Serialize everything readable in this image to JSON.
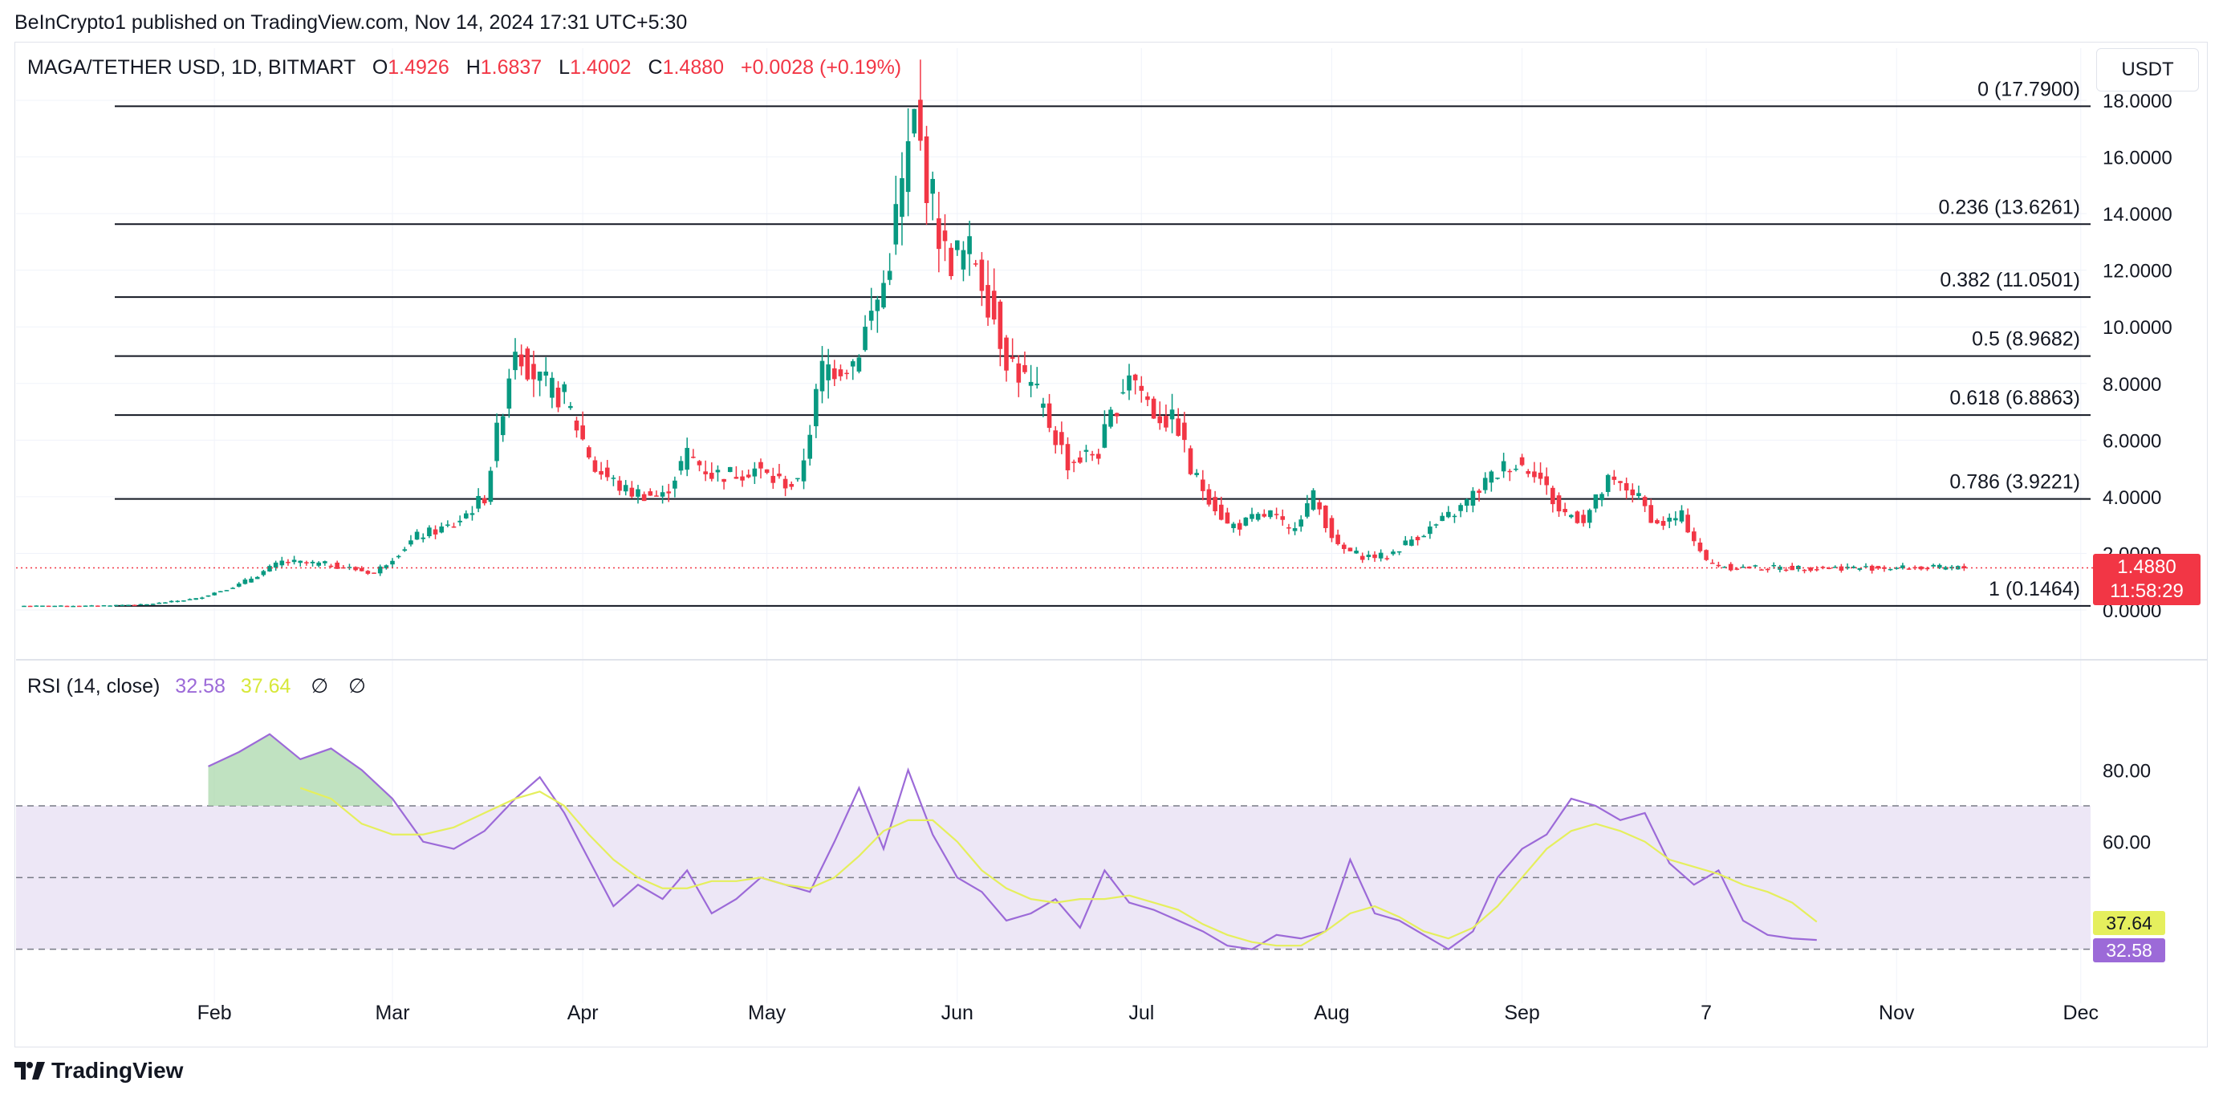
{
  "header": {
    "publisher": "BeInCrypto1 published on TradingView.com, Nov 14, 2024 17:31 UTC+5:30"
  },
  "legend": {
    "symbol": "MAGA/TETHER USD, 1D, BITMART",
    "o_label": "O",
    "o_value": "1.4926",
    "h_label": "H",
    "h_value": "1.6837",
    "l_label": "L",
    "l_value": "1.4002",
    "c_label": "C",
    "c_value": "1.4880",
    "change": "+0.0028 (+0.19%)"
  },
  "currency_unit": "USDT",
  "price_tag": {
    "price": "1.4880",
    "countdown": "11:58:29"
  },
  "rsi_legend": {
    "label": "RSI (14, close)",
    "rsi_value": "32.58",
    "ma_value": "37.64",
    "null1": "∅",
    "null2": "∅"
  },
  "rsi_tags": {
    "ma": "37.64",
    "rsi": "32.58"
  },
  "branding": {
    "name": "TradingView"
  },
  "colors": {
    "up": "#089981",
    "down": "#f23645",
    "rsi_line": "#9c6ad8",
    "rsi_ma": "#e5ef5d",
    "rsi_band": "#ede7f6",
    "fib_line": "#131722"
  },
  "chart_data": [
    {
      "type": "candlestick",
      "title": "MAGA/TETHER USD, 1D, BITMART",
      "ylabel": "USDT",
      "ylim": [
        0,
        18
      ],
      "y_ticks": [
        "0.0000",
        "2.0000",
        "4.0000",
        "6.0000",
        "8.0000",
        "10.0000",
        "12.0000",
        "14.0000",
        "16.0000",
        "18.0000"
      ],
      "x_ticks": [
        "Feb",
        "Mar",
        "Apr",
        "May",
        "Jun",
        "Jul",
        "Aug",
        "Sep",
        "7",
        "Nov",
        "Dec"
      ],
      "fibonacci": [
        {
          "label": "0 (17.7900)",
          "value": 17.79
        },
        {
          "label": "0.236 (13.6261)",
          "value": 13.6261
        },
        {
          "label": "0.382 (11.0501)",
          "value": 11.0501
        },
        {
          "label": "0.5 (8.9682)",
          "value": 8.9682
        },
        {
          "label": "0.618 (6.8863)",
          "value": 6.8863
        },
        {
          "label": "0.786 (3.9221)",
          "value": 3.9221
        },
        {
          "label": "1 (0.1464)",
          "value": 0.1464
        }
      ],
      "last_price": 1.488,
      "close_series": {
        "day_offset": [
          0,
          10,
          20,
          28,
          35,
          42,
          50,
          57,
          64,
          70,
          75,
          80,
          84,
          88,
          93,
          98,
          104,
          108,
          112,
          115,
          119,
          122,
          126,
          130,
          135,
          140,
          145,
          150,
          155,
          160,
          165,
          170,
          175,
          180,
          184,
          188,
          190,
          193,
          196,
          198,
          200,
          203,
          206,
          210,
          214,
          218,
          222,
          226,
          230,
          234,
          238,
          242,
          246,
          250,
          254,
          258,
          262,
          266,
          270,
          274,
          278,
          282,
          286,
          290,
          294,
          298,
          302,
          306,
          310,
          314,
          316
        ],
        "close": [
          0.15,
          0.15,
          0.2,
          0.4,
          0.9,
          1.7,
          1.6,
          1.3,
          2.6,
          3.0,
          4.0,
          9.5,
          8.0,
          7.5,
          5.0,
          4.2,
          4.0,
          5.5,
          4.8,
          4.8,
          5.0,
          4.6,
          4.4,
          8.5,
          8.8,
          11.5,
          17.2,
          12.5,
          12.5,
          9.0,
          7.5,
          5.2,
          5.6,
          8.5,
          7.0,
          6.5,
          4.9,
          4.0,
          3.0,
          3.0,
          3.2,
          3.4,
          2.8,
          4.0,
          2.2,
          1.9,
          1.9,
          2.5,
          3.0,
          3.6,
          4.5,
          5.2,
          5.0,
          3.5,
          3.2,
          4.5,
          4.2,
          3.0,
          3.3,
          1.7,
          1.5,
          1.5,
          1.49,
          1.49,
          1.49,
          1.49,
          1.49,
          1.49,
          1.49,
          1.49,
          1.49
        ]
      }
    },
    {
      "type": "line",
      "title": "RSI (14, close)",
      "ylim": [
        25,
        100
      ],
      "y_ticks": [
        "60.00",
        "80.00"
      ],
      "bands": {
        "upper": 70,
        "middle": 50,
        "lower": 30
      },
      "series": [
        {
          "name": "RSI",
          "day_offset": [
            30,
            35,
            40,
            45,
            50,
            55,
            60,
            65,
            70,
            75,
            80,
            84,
            88,
            92,
            96,
            100,
            104,
            108,
            112,
            116,
            120,
            124,
            128,
            132,
            136,
            140,
            144,
            148,
            152,
            156,
            160,
            164,
            168,
            172,
            176,
            180,
            184,
            188,
            192,
            196,
            200,
            204,
            208,
            212,
            216,
            220,
            224,
            228,
            232,
            236,
            240,
            244,
            248,
            252,
            256,
            260,
            264,
            268,
            272,
            276,
            280,
            284,
            288,
            292
          ],
          "values": [
            81,
            85,
            90,
            83,
            86,
            80,
            72,
            60,
            58,
            63,
            72,
            78,
            68,
            55,
            42,
            48,
            44,
            52,
            40,
            44,
            50,
            48,
            46,
            60,
            75,
            58,
            80,
            62,
            50,
            46,
            38,
            40,
            44,
            36,
            52,
            43,
            41,
            38,
            35,
            31,
            30,
            34,
            33,
            35,
            55,
            40,
            38,
            34,
            30,
            35,
            50,
            58,
            62,
            72,
            70,
            66,
            68,
            54,
            48,
            52,
            38,
            34,
            33,
            32.58
          ]
        },
        {
          "name": "RSI-based MA",
          "day_offset": [
            45,
            50,
            55,
            60,
            65,
            70,
            75,
            80,
            84,
            88,
            92,
            96,
            100,
            104,
            108,
            112,
            116,
            120,
            124,
            128,
            132,
            136,
            140,
            144,
            148,
            152,
            156,
            160,
            164,
            168,
            172,
            176,
            180,
            184,
            188,
            192,
            196,
            200,
            204,
            208,
            212,
            216,
            220,
            224,
            228,
            232,
            236,
            240,
            244,
            248,
            252,
            256,
            260,
            264,
            268,
            272,
            276,
            280,
            284,
            288,
            292
          ],
          "values": [
            75,
            72,
            65,
            62,
            62,
            64,
            68,
            72,
            74,
            70,
            62,
            55,
            50,
            47,
            47,
            49,
            49,
            50,
            48,
            47,
            50,
            56,
            63,
            66,
            66,
            60,
            52,
            47,
            44,
            43,
            44,
            44,
            45,
            43,
            41,
            37,
            34,
            32,
            31,
            31,
            35,
            40,
            42,
            39,
            35,
            33,
            36,
            42,
            50,
            58,
            63,
            65,
            63,
            60,
            55,
            53,
            51,
            48,
            46,
            43,
            37.64
          ]
        }
      ]
    }
  ]
}
